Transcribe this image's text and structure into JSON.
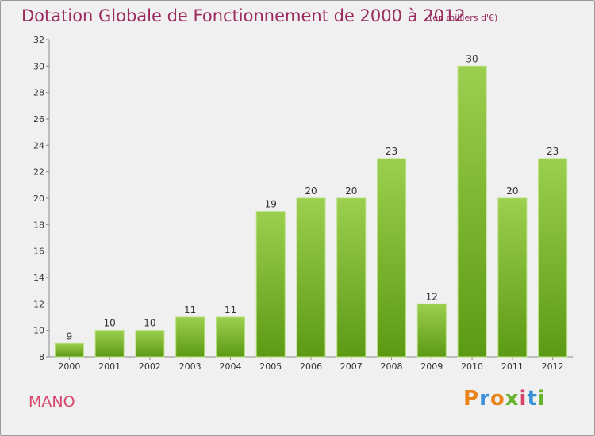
{
  "header": {
    "title": "Dotation Globale de Fonctionnement de 2000 à 2012",
    "subtitle": "(en milliers d'€)"
  },
  "footer": {
    "commune": "MANO",
    "logo_text": "Proxiti"
  },
  "colors": {
    "title": "#9b2a5e",
    "commune": "#d9436a",
    "bar_top": "#9ccf4f",
    "bar_bottom": "#5c9a14",
    "logo": [
      "#e8841a",
      "#3a8fd6",
      "#e8841a",
      "#66b32e",
      "#d9436a",
      "#3a8fd6",
      "#66b32e"
    ]
  },
  "chart_data": {
    "type": "bar",
    "categories": [
      "2000",
      "2001",
      "2002",
      "2003",
      "2004",
      "2005",
      "2006",
      "2007",
      "2008",
      "2009",
      "2010",
      "2011",
      "2012"
    ],
    "values": [
      9,
      10,
      10,
      11,
      11,
      19,
      20,
      20,
      23,
      12,
      30,
      20,
      23
    ],
    "ylim": [
      8,
      32
    ],
    "yticks": [
      8,
      10,
      12,
      14,
      16,
      18,
      20,
      22,
      24,
      26,
      28,
      30,
      32
    ],
    "grid": false,
    "data_labels": true
  }
}
